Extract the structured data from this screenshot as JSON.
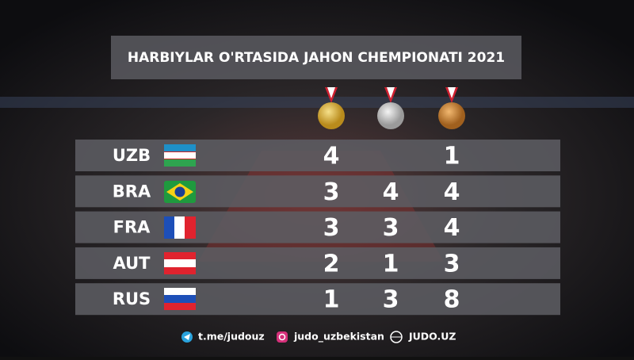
{
  "header": {
    "title": "HARBIYLAR O'RTASIDA JAHON CHEMPIONATI 2021"
  },
  "table": {
    "rows": [
      {
        "country": "UZB",
        "gold": 4,
        "silver": null,
        "bronze": 1
      },
      {
        "country": "BRA",
        "gold": 3,
        "silver": 4,
        "bronze": 4
      },
      {
        "country": "FRA",
        "gold": 3,
        "silver": 3,
        "bronze": 4
      },
      {
        "country": "AUT",
        "gold": 2,
        "silver": 1,
        "bronze": 3
      },
      {
        "country": "RUS",
        "gold": 1,
        "silver": 3,
        "bronze": 8
      }
    ]
  },
  "footer": {
    "telegram": "t.me/judouz",
    "instagram": "judo_uzbekistan",
    "website": "JUDO.UZ"
  }
}
